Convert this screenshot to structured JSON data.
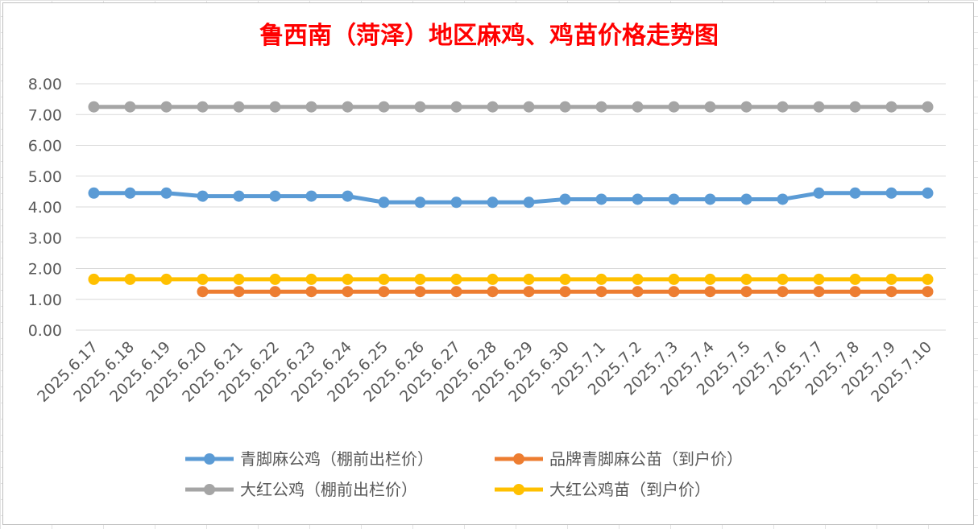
{
  "chart_data": {
    "type": "line",
    "title": "鲁西南（菏泽）地区麻鸡、鸡苗价格走势图",
    "title_color": "#ff0000",
    "x": [
      "2025.6.17",
      "2025.6.18",
      "2025.6.19",
      "2025.6.20",
      "2025.6.21",
      "2025.6.22",
      "2025.6.23",
      "2025.6.24",
      "2025.6.25",
      "2025.6.26",
      "2025.6.27",
      "2025.6.28",
      "2025.6.29",
      "2025.6.30",
      "2025.7.1",
      "2025.7.2",
      "2025.7.3",
      "2025.7.4",
      "2025.7.5",
      "2025.7.6",
      "2025.7.7",
      "2025.7.8",
      "2025.7.9",
      "2025.7.10"
    ],
    "ylim": [
      0,
      8
    ],
    "yticks": [
      "0.00",
      "1.00",
      "2.00",
      "3.00",
      "4.00",
      "5.00",
      "6.00",
      "7.00",
      "8.00"
    ],
    "grid": true,
    "legend_position": "bottom",
    "series": [
      {
        "name": "青脚麻公鸡（棚前出栏价）",
        "color": "#5b9bd5",
        "values": [
          4.45,
          4.45,
          4.45,
          4.35,
          4.35,
          4.35,
          4.35,
          4.35,
          4.15,
          4.15,
          4.15,
          4.15,
          4.15,
          4.25,
          4.25,
          4.25,
          4.25,
          4.25,
          4.25,
          4.25,
          4.45,
          4.45,
          4.45,
          4.45
        ]
      },
      {
        "name": "品牌青脚麻公苗（到户价）",
        "color": "#ed7d31",
        "values": [
          null,
          null,
          null,
          1.25,
          1.25,
          1.25,
          1.25,
          1.25,
          1.25,
          1.25,
          1.25,
          1.25,
          1.25,
          1.25,
          1.25,
          1.25,
          1.25,
          1.25,
          1.25,
          1.25,
          1.25,
          1.25,
          1.25,
          1.25
        ]
      },
      {
        "name": "大红公鸡（棚前出栏价）",
        "color": "#a5a5a5",
        "values": [
          7.25,
          7.25,
          7.25,
          7.25,
          7.25,
          7.25,
          7.25,
          7.25,
          7.25,
          7.25,
          7.25,
          7.25,
          7.25,
          7.25,
          7.25,
          7.25,
          7.25,
          7.25,
          7.25,
          7.25,
          7.25,
          7.25,
          7.25,
          7.25
        ]
      },
      {
        "name": "大红公鸡苗（到户价）",
        "color": "#ffc000",
        "values": [
          1.65,
          1.65,
          1.65,
          1.65,
          1.65,
          1.65,
          1.65,
          1.65,
          1.65,
          1.65,
          1.65,
          1.65,
          1.65,
          1.65,
          1.65,
          1.65,
          1.65,
          1.65,
          1.65,
          1.65,
          1.65,
          1.65,
          1.65,
          1.65
        ]
      }
    ]
  }
}
